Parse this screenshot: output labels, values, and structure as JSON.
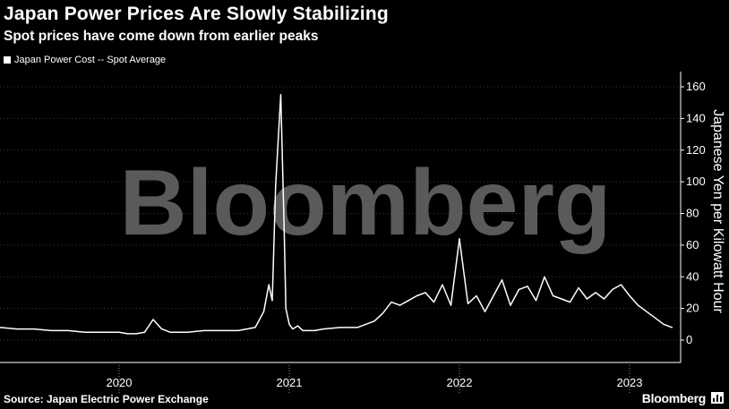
{
  "header": {
    "title": "Japan Power Prices Are Slowly Stabilizing",
    "subtitle": "Spot prices have come down from earlier peaks"
  },
  "legend": {
    "label": "Japan Power Cost -- Spot Average"
  },
  "watermark": "Bloomberg",
  "footer": {
    "source": "Source: Japan Electric Power Exchange",
    "brand": "Bloomberg"
  },
  "colors": {
    "background": "#000000",
    "line": "#ffffff",
    "grid": "#3a3a3a",
    "watermark": "#5a5a5a"
  },
  "chart_data": {
    "type": "line",
    "title": "Japan Power Prices Are Slowly Stabilizing",
    "subtitle": "Spot prices have come down from earlier peaks",
    "xlabel": "",
    "ylabel": "Japanese Yen per Kilowatt Hour",
    "ylim": [
      -8,
      165
    ],
    "yticks": [
      0,
      20,
      40,
      60,
      80,
      100,
      120,
      140,
      160
    ],
    "xlim": [
      2019.3,
      2023.3
    ],
    "year_labels": [
      {
        "label": "2020",
        "x": 2020.0
      },
      {
        "label": "2021",
        "x": 2021.0
      },
      {
        "label": "2022",
        "x": 2022.0
      },
      {
        "label": "2023",
        "x": 2023.0
      }
    ],
    "year_boundaries": [
      2020.0,
      2021.0,
      2022.0,
      2023.0
    ],
    "grid": true,
    "legend_position": "top-left",
    "series": [
      {
        "name": "Japan Power Cost -- Spot Average",
        "x": [
          2019.3,
          2019.4,
          2019.5,
          2019.6,
          2019.7,
          2019.8,
          2019.9,
          2020.0,
          2020.05,
          2020.1,
          2020.15,
          2020.2,
          2020.25,
          2020.3,
          2020.35,
          2020.4,
          2020.5,
          2020.6,
          2020.7,
          2020.8,
          2020.85,
          2020.88,
          2020.9,
          2020.92,
          2020.95,
          2020.97,
          2020.98,
          2021.0,
          2021.02,
          2021.05,
          2021.08,
          2021.1,
          2021.15,
          2021.2,
          2021.3,
          2021.4,
          2021.5,
          2021.55,
          2021.6,
          2021.65,
          2021.7,
          2021.75,
          2021.8,
          2021.85,
          2021.9,
          2021.95,
          2022.0,
          2022.05,
          2022.1,
          2022.15,
          2022.18,
          2022.2,
          2022.25,
          2022.3,
          2022.35,
          2022.4,
          2022.45,
          2022.5,
          2022.55,
          2022.6,
          2022.65,
          2022.7,
          2022.75,
          2022.8,
          2022.85,
          2022.9,
          2022.95,
          2023.0,
          2023.05,
          2023.1,
          2023.15,
          2023.2,
          2023.25
        ],
        "values": [
          8,
          7,
          7,
          6,
          6,
          5,
          5,
          5,
          4,
          4,
          5,
          13,
          7,
          5,
          5,
          5,
          6,
          6,
          6,
          8,
          18,
          35,
          25,
          98,
          155,
          70,
          20,
          10,
          7,
          9,
          6,
          6,
          6,
          7,
          8,
          8,
          12,
          17,
          24,
          22,
          25,
          28,
          30,
          24,
          35,
          22,
          64,
          23,
          28,
          18,
          24,
          28,
          38,
          22,
          32,
          34,
          25,
          40,
          28,
          26,
          24,
          33,
          26,
          30,
          26,
          32,
          35,
          28,
          22,
          18,
          14,
          10,
          8
        ]
      }
    ]
  }
}
